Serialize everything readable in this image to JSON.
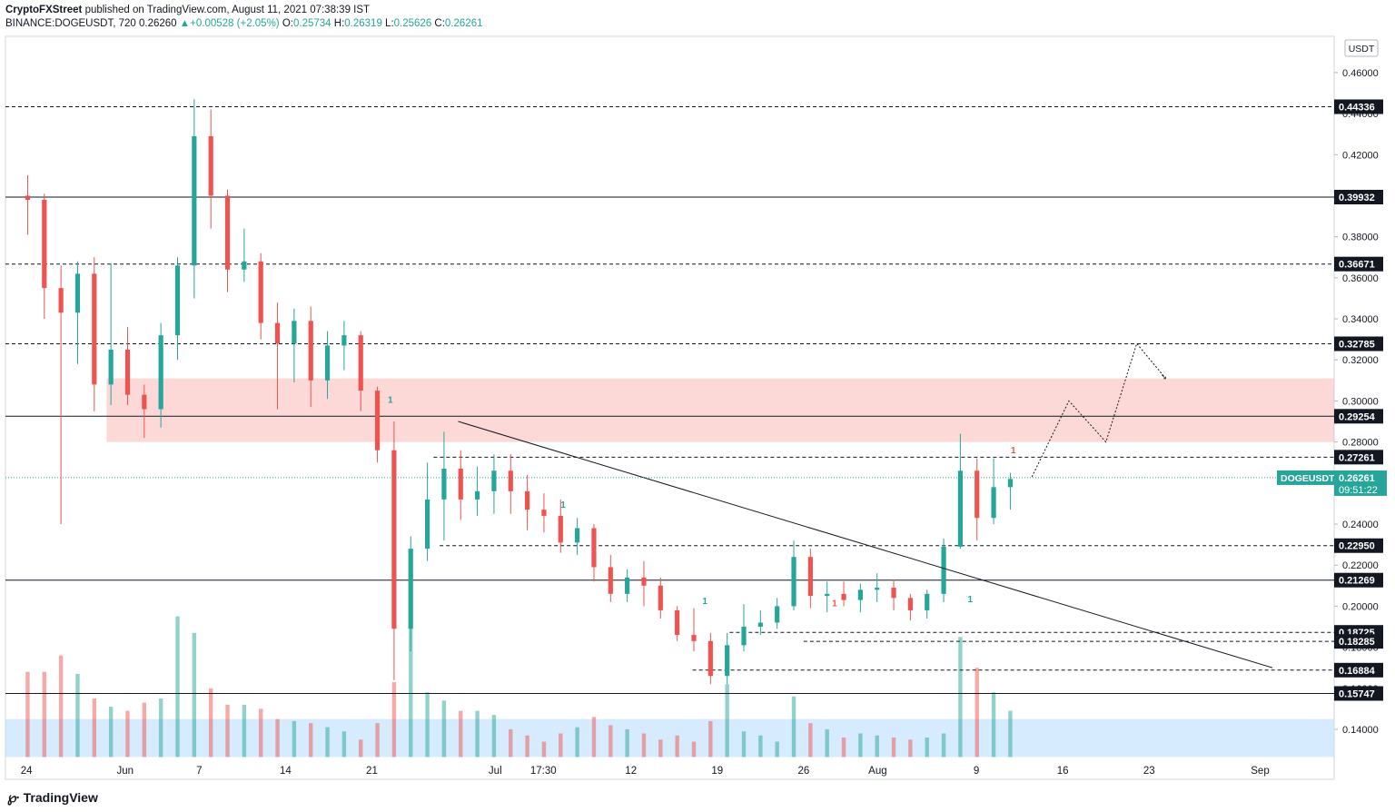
{
  "header": {
    "author": "CryptoFXStreet",
    "published": "published on TradingView.com, August 11, 2021 07:38:39 IST",
    "symbol_line": "BINANCE:DOGEUSDT, 720",
    "last": "0.26260",
    "change": "+0.00528 (+2.05%)",
    "o_label": "O:",
    "o": "0.25734",
    "h_label": "H:",
    "h": "0.26319",
    "l_label": "L:",
    "l": "0.25626",
    "c_label": "C:",
    "c": "0.26261"
  },
  "branding": {
    "logo_text": "TradingView",
    "logo_icon": "tradingview-logo-icon"
  },
  "chart_data": {
    "type": "candlestick",
    "currency_label": "USDT",
    "price_axis_ticks": [
      "0.46000",
      "0.44000",
      "0.42000",
      "0.40000",
      "0.38000",
      "0.36000",
      "0.34000",
      "0.32000",
      "0.30000",
      "0.28000",
      "0.26000",
      "0.24000",
      "0.22000",
      "0.20000",
      "0.18000",
      "0.16000",
      "0.14000"
    ],
    "ylim": [
      0.13,
      0.47
    ],
    "time_axis_ticks": [
      {
        "label": "24",
        "day": 0
      },
      {
        "label": "Jun",
        "day": 8
      },
      {
        "label": "7",
        "day": 14
      },
      {
        "label": "14",
        "day": 21
      },
      {
        "label": "21",
        "day": 28
      },
      {
        "label": "Jul",
        "day": 38
      },
      {
        "label": "17:30",
        "day": 41.9
      },
      {
        "label": "12",
        "day": 49
      },
      {
        "label": "19",
        "day": 56
      },
      {
        "label": "26",
        "day": 63
      },
      {
        "label": "Aug",
        "day": 69
      },
      {
        "label": "9",
        "day": 77
      },
      {
        "label": "16",
        "day": 84
      },
      {
        "label": "23",
        "day": 91
      },
      {
        "label": "Sep",
        "day": 100
      }
    ],
    "xlim_days": [
      -1.7,
      106
    ],
    "levels": [
      {
        "value": 0.44336,
        "label": "0.44336",
        "style": "dashed"
      },
      {
        "value": 0.39932,
        "label": "0.39932",
        "style": "solid"
      },
      {
        "value": 0.36671,
        "label": "0.36671",
        "style": "dashed"
      },
      {
        "value": 0.32785,
        "label": "0.32785",
        "style": "dashed"
      },
      {
        "value": 0.29254,
        "label": "0.29254",
        "style": "solid"
      },
      {
        "value": 0.27261,
        "label": "0.27261",
        "style": "dashed",
        "from_day": 33
      },
      {
        "value": 0.2295,
        "label": "0.22950",
        "style": "dashed",
        "from_day": 33.5
      },
      {
        "value": 0.21269,
        "label": "0.21269",
        "style": "solid"
      },
      {
        "value": 0.18725,
        "label": "0.18725",
        "style": "dashed",
        "from_day": 57
      },
      {
        "value": 0.18285,
        "label": "0.18285",
        "style": "dashed",
        "from_day": 63
      },
      {
        "value": 0.16884,
        "label": "0.16884",
        "style": "dashed",
        "from_day": 54
      },
      {
        "value": 0.15747,
        "label": "0.15747",
        "style": "solid"
      }
    ],
    "current_price": {
      "symbol": "DOGEUSDT",
      "value": 0.26261,
      "label": "0.26261",
      "countdown": "09:51:22"
    },
    "supply_zone": {
      "from_day": 6.5,
      "to_day": 106,
      "top": 0.311,
      "bottom": 0.28
    },
    "volume_zone": {
      "top": 0.145,
      "bottom": 0.1265
    },
    "trendline": [
      {
        "day": 35,
        "price": 0.29
      },
      {
        "day": 101,
        "price": 0.17
      }
    ],
    "projection_path": [
      {
        "day": 81.5,
        "price": 0.263
      },
      {
        "day": 84.5,
        "price": 0.3
      },
      {
        "day": 87.5,
        "price": 0.28
      },
      {
        "day": 90,
        "price": 0.328
      },
      {
        "day": 92.2,
        "price": 0.312
      }
    ],
    "markers": [
      {
        "day": 29.5,
        "price": 0.299,
        "text": "1",
        "kind": "green"
      },
      {
        "day": 43.5,
        "price": 0.248,
        "text": "1",
        "kind": "green"
      },
      {
        "day": 55,
        "price": 0.201,
        "text": "1",
        "kind": "green"
      },
      {
        "day": 65.5,
        "price": 0.2,
        "text": "1",
        "kind": "red"
      },
      {
        "day": 76.5,
        "price": 0.202,
        "text": "1",
        "kind": "green"
      },
      {
        "day": 80,
        "price": 0.2745,
        "text": "1",
        "kind": "red"
      }
    ],
    "candles": [
      [
        0.4,
        0.41,
        0.381,
        0.398
      ],
      [
        0.398,
        0.401,
        0.34,
        0.355
      ],
      [
        0.355,
        0.366,
        0.24,
        0.343
      ],
      [
        0.343,
        0.368,
        0.318,
        0.362
      ],
      [
        0.362,
        0.37,
        0.295,
        0.308
      ],
      [
        0.308,
        0.367,
        0.298,
        0.325
      ],
      [
        0.325,
        0.336,
        0.298,
        0.303
      ],
      [
        0.303,
        0.308,
        0.282,
        0.296
      ],
      [
        0.296,
        0.338,
        0.287,
        0.332
      ],
      [
        0.332,
        0.37,
        0.32,
        0.366
      ],
      [
        0.366,
        0.447,
        0.35,
        0.429
      ],
      [
        0.429,
        0.442,
        0.384,
        0.4
      ],
      [
        0.4,
        0.403,
        0.353,
        0.364
      ],
      [
        0.364,
        0.384,
        0.358,
        0.368
      ],
      [
        0.368,
        0.372,
        0.33,
        0.338
      ],
      [
        0.338,
        0.348,
        0.296,
        0.328
      ],
      [
        0.328,
        0.345,
        0.309,
        0.339
      ],
      [
        0.339,
        0.346,
        0.297,
        0.31
      ],
      [
        0.31,
        0.334,
        0.301,
        0.327
      ],
      [
        0.327,
        0.339,
        0.315,
        0.332
      ],
      [
        0.332,
        0.334,
        0.295,
        0.305
      ],
      [
        0.305,
        0.307,
        0.27,
        0.276
      ],
      [
        0.276,
        0.29,
        0.164,
        0.189
      ],
      [
        0.189,
        0.234,
        0.178,
        0.228
      ],
      [
        0.228,
        0.27,
        0.222,
        0.252
      ],
      [
        0.252,
        0.285,
        0.232,
        0.267
      ],
      [
        0.267,
        0.276,
        0.242,
        0.252
      ],
      [
        0.252,
        0.268,
        0.244,
        0.256
      ],
      [
        0.256,
        0.274,
        0.245,
        0.266
      ],
      [
        0.266,
        0.274,
        0.245,
        0.256
      ],
      [
        0.256,
        0.264,
        0.237,
        0.247
      ],
      [
        0.247,
        0.255,
        0.236,
        0.244
      ],
      [
        0.244,
        0.252,
        0.226,
        0.231
      ],
      [
        0.231,
        0.243,
        0.225,
        0.238
      ],
      [
        0.238,
        0.24,
        0.212,
        0.219
      ],
      [
        0.219,
        0.225,
        0.202,
        0.206
      ],
      [
        0.206,
        0.218,
        0.202,
        0.214
      ],
      [
        0.214,
        0.222,
        0.2,
        0.21
      ],
      [
        0.21,
        0.214,
        0.194,
        0.198
      ],
      [
        0.198,
        0.2,
        0.183,
        0.186
      ],
      [
        0.186,
        0.199,
        0.178,
        0.183
      ],
      [
        0.183,
        0.187,
        0.162,
        0.166
      ],
      [
        0.166,
        0.187,
        0.162,
        0.181
      ],
      [
        0.181,
        0.201,
        0.178,
        0.19
      ],
      [
        0.19,
        0.198,
        0.186,
        0.192
      ],
      [
        0.192,
        0.204,
        0.189,
        0.2
      ],
      [
        0.2,
        0.232,
        0.198,
        0.224
      ],
      [
        0.224,
        0.228,
        0.199,
        0.205
      ],
      [
        0.205,
        0.212,
        0.197,
        0.206
      ],
      [
        0.206,
        0.212,
        0.2,
        0.203
      ],
      [
        0.203,
        0.211,
        0.197,
        0.208
      ],
      [
        0.208,
        0.216,
        0.202,
        0.209
      ],
      [
        0.209,
        0.213,
        0.198,
        0.204
      ],
      [
        0.204,
        0.206,
        0.193,
        0.198
      ],
      [
        0.198,
        0.208,
        0.194,
        0.206
      ],
      [
        0.206,
        0.233,
        0.202,
        0.229
      ],
      [
        0.229,
        0.284,
        0.228,
        0.266
      ],
      [
        0.266,
        0.272,
        0.232,
        0.243
      ],
      [
        0.243,
        0.272,
        0.24,
        0.258
      ],
      [
        0.258,
        0.265,
        0.247,
        0.262
      ]
    ],
    "volumes": [
      0.168,
      0.168,
      0.176,
      0.167,
      0.155,
      0.151,
      0.149,
      0.153,
      0.155,
      0.195,
      0.187,
      0.16,
      0.152,
      0.152,
      0.15,
      0.145,
      0.144,
      0.143,
      0.141,
      0.139,
      0.135,
      0.143,
      0.163,
      0.189,
      0.158,
      0.154,
      0.149,
      0.149,
      0.147,
      0.14,
      0.137,
      0.134,
      0.138,
      0.141,
      0.146,
      0.142,
      0.14,
      0.138,
      0.135,
      0.137,
      0.134,
      0.144,
      0.162,
      0.139,
      0.137,
      0.134,
      0.156,
      0.143,
      0.14,
      0.136,
      0.138,
      0.137,
      0.136,
      0.135,
      0.136,
      0.138,
      0.185,
      0.17,
      0.158,
      0.149
    ]
  }
}
